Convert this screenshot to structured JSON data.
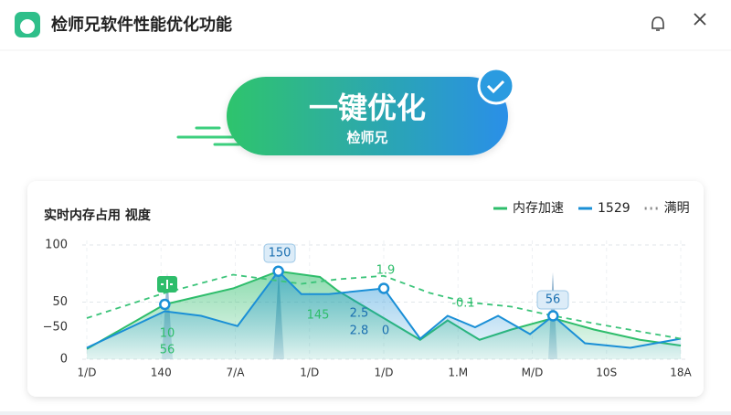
{
  "header": {
    "title": "检师兄软件性能优化功能"
  },
  "button": {
    "label": "一键优化",
    "sublabel": "检师兄"
  },
  "chart_data": {
    "type": "line",
    "title": "实时内存占用 视度",
    "categories": [
      "1/D",
      "140",
      "7/A",
      "1/D",
      "1/D",
      "1.M",
      "M/D",
      "10S",
      "18A"
    ],
    "xlim": [
      0,
      8
    ],
    "ylim": [
      0,
      100
    ],
    "yticks": [
      0,
      50,
      100
    ],
    "grid": true,
    "series": [
      {
        "name": "内存加速",
        "color": "#2ebd6b",
        "style": "area",
        "x": [
          0,
          1.05,
          1.97,
          2.58,
          3.14,
          3.38,
          4.49,
          4.86,
          5.29,
          5.72,
          6.28,
          6.83,
          7.45,
          8
        ],
        "values": [
          9,
          48,
          62,
          77,
          72,
          60,
          17,
          34,
          17,
          26,
          36,
          26,
          17,
          12
        ]
      },
      {
        "name": "1529",
        "color": "#1a8fd6",
        "style": "area",
        "x": [
          0,
          1.05,
          1.54,
          2.03,
          2.58,
          2.89,
          3.26,
          4,
          4.49,
          4.86,
          5.23,
          5.54,
          5.97,
          6.28,
          6.71,
          7.32,
          8
        ],
        "values": [
          10,
          42,
          38,
          29,
          77,
          57,
          57,
          62,
          18,
          38,
          28,
          38,
          22,
          38,
          14,
          10,
          18
        ]
      },
      {
        "name": "满明",
        "color": "#3cc47a",
        "style": "dashed",
        "x": [
          0,
          1.05,
          1.97,
          2.89,
          3.38,
          4,
          4.62,
          5.11,
          5.72,
          6.28,
          6.95,
          8
        ],
        "values": [
          36,
          58,
          74,
          66,
          70,
          73,
          58,
          50,
          46,
          38,
          30,
          18
        ]
      }
    ],
    "annotations": [
      "150",
      "1.9",
      "-0.1",
      "56",
      "145",
      "2.5",
      "2.8",
      "0",
      "10",
      "56",
      "−50"
    ]
  }
}
